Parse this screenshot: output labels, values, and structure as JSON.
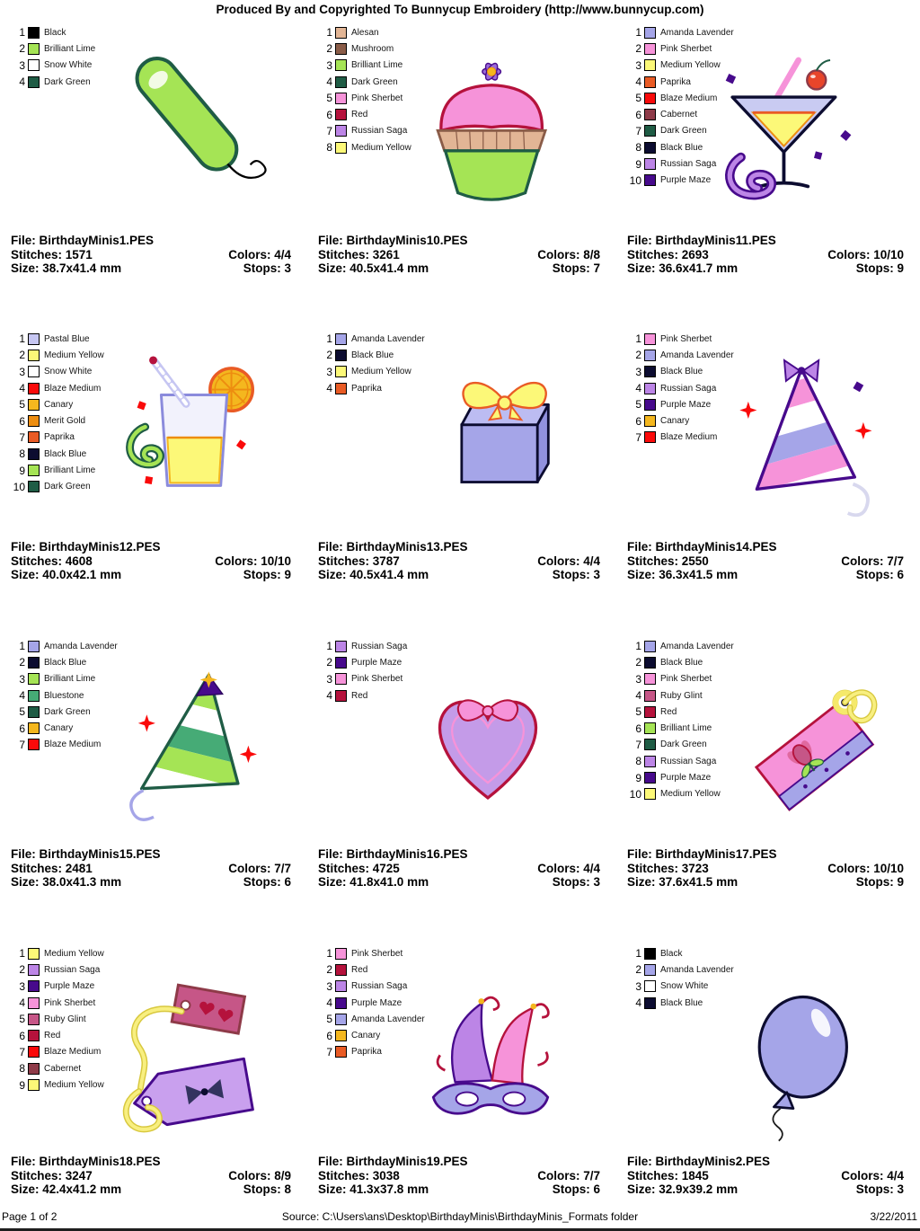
{
  "header": {
    "title": "Produced By and Copyrighted To Bunnycup Embroidery (http://www.bunnycup.com)"
  },
  "labels": {
    "file": "File:",
    "stitches": "Stitches:",
    "size": "Size:",
    "colors": "Colors:",
    "stops": "Stops:"
  },
  "palette": {
    "Black": "#000000",
    "Brilliant Lime": "#A5E455",
    "Snow White": "#FFFFFF",
    "Dark Green": "#1F5C45",
    "Alesan": "#E2B595",
    "Mushroom": "#8A5C48",
    "Pink Sherbet": "#F693D9",
    "Red": "#B5123C",
    "Russian Saga": "#BC85E6",
    "Medium Yellow": "#FCF878",
    "Amanda Lavender": "#A5A5E8",
    "Paprika": "#E95B25",
    "Blaze Medium": "#FA0A0A",
    "Cabernet": "#8E3A48",
    "Black Blue": "#0C0C30",
    "Purple Maze": "#470A8C",
    "Pastal Blue": "#C6C6F2",
    "Canary": "#F4B71E",
    "Merit Gold": "#ED8D10",
    "Bluestone": "#46AB76",
    "Ruby Glint": "#C65687"
  },
  "designs": [
    {
      "file": "BirthdayMinis1.PES",
      "stitches": "1571",
      "size": "38.7x41.4 mm",
      "colors": "4/4",
      "stops": "3",
      "threads": [
        "Black",
        "Brilliant Lime",
        "Snow White",
        "Dark Green"
      ]
    },
    {
      "file": "BirthdayMinis10.PES",
      "stitches": "3261",
      "size": "40.5x41.4 mm",
      "colors": "8/8",
      "stops": "7",
      "threads": [
        "Alesan",
        "Mushroom",
        "Brilliant Lime",
        "Dark Green",
        "Pink Sherbet",
        "Red",
        "Russian Saga",
        "Medium Yellow"
      ]
    },
    {
      "file": "BirthdayMinis11.PES",
      "stitches": "2693",
      "size": "36.6x41.7 mm",
      "colors": "10/10",
      "stops": "9",
      "threads": [
        "Amanda Lavender",
        "Pink Sherbet",
        "Medium Yellow",
        "Paprika",
        "Blaze Medium",
        "Cabernet",
        "Dark Green",
        "Black Blue",
        "Russian Saga",
        "Purple Maze"
      ]
    },
    {
      "file": "BirthdayMinis12.PES",
      "stitches": "4608",
      "size": "40.0x42.1 mm",
      "colors": "10/10",
      "stops": "9",
      "threads": [
        "Pastal Blue",
        "Medium Yellow",
        "Snow White",
        "Blaze Medium",
        "Canary",
        "Merit Gold",
        "Paprika",
        "Black Blue",
        "Brilliant Lime",
        "Dark Green"
      ]
    },
    {
      "file": "BirthdayMinis13.PES",
      "stitches": "3787",
      "size": "40.5x41.4 mm",
      "colors": "4/4",
      "stops": "3",
      "threads": [
        "Amanda Lavender",
        "Black Blue",
        "Medium Yellow",
        "Paprika"
      ]
    },
    {
      "file": "BirthdayMinis14.PES",
      "stitches": "2550",
      "size": "36.3x41.5 mm",
      "colors": "7/7",
      "stops": "6",
      "threads": [
        "Pink Sherbet",
        "Amanda Lavender",
        "Black Blue",
        "Russian Saga",
        "Purple Maze",
        "Canary",
        "Blaze Medium"
      ]
    },
    {
      "file": "BirthdayMinis15.PES",
      "stitches": "2481",
      "size": "38.0x41.3 mm",
      "colors": "7/7",
      "stops": "6",
      "threads": [
        "Amanda Lavender",
        "Black Blue",
        "Brilliant Lime",
        "Bluestone",
        "Dark Green",
        "Canary",
        "Blaze Medium"
      ]
    },
    {
      "file": "BirthdayMinis16.PES",
      "stitches": "4725",
      "size": "41.8x41.0 mm",
      "colors": "4/4",
      "stops": "3",
      "threads": [
        "Russian Saga",
        "Purple Maze",
        "Pink Sherbet",
        "Red"
      ]
    },
    {
      "file": "BirthdayMinis17.PES",
      "stitches": "3723",
      "size": "37.6x41.5 mm",
      "colors": "10/10",
      "stops": "9",
      "threads": [
        "Amanda Lavender",
        "Black Blue",
        "Pink Sherbet",
        "Ruby Glint",
        "Red",
        "Brilliant Lime",
        "Dark Green",
        "Russian Saga",
        "Purple Maze",
        "Medium Yellow"
      ]
    },
    {
      "file": "BirthdayMinis18.PES",
      "stitches": "3247",
      "size": "42.4x41.2 mm",
      "colors": "8/9",
      "stops": "8",
      "threads": [
        "Medium Yellow",
        "Russian Saga",
        "Purple Maze",
        "Pink Sherbet",
        "Ruby Glint",
        "Red",
        "Blaze Medium",
        "Cabernet",
        "Medium Yellow"
      ]
    },
    {
      "file": "BirthdayMinis19.PES",
      "stitches": "3038",
      "size": "41.3x37.8 mm",
      "colors": "7/7",
      "stops": "6",
      "threads": [
        "Pink Sherbet",
        "Red",
        "Russian Saga",
        "Purple Maze",
        "Amanda Lavender",
        "Canary",
        "Paprika"
      ]
    },
    {
      "file": "BirthdayMinis2.PES",
      "stitches": "1845",
      "size": "32.9x39.2 mm",
      "colors": "4/4",
      "stops": "3",
      "threads": [
        "Black",
        "Amanda Lavender",
        "Snow White",
        "Black Blue"
      ]
    }
  ],
  "footer": {
    "page": "Page 1 of 2",
    "source": "Source: C:\\Users\\ans\\Desktop\\BirthdayMinis\\BirthdayMinis_Formats folder",
    "date": "3/22/2011"
  }
}
